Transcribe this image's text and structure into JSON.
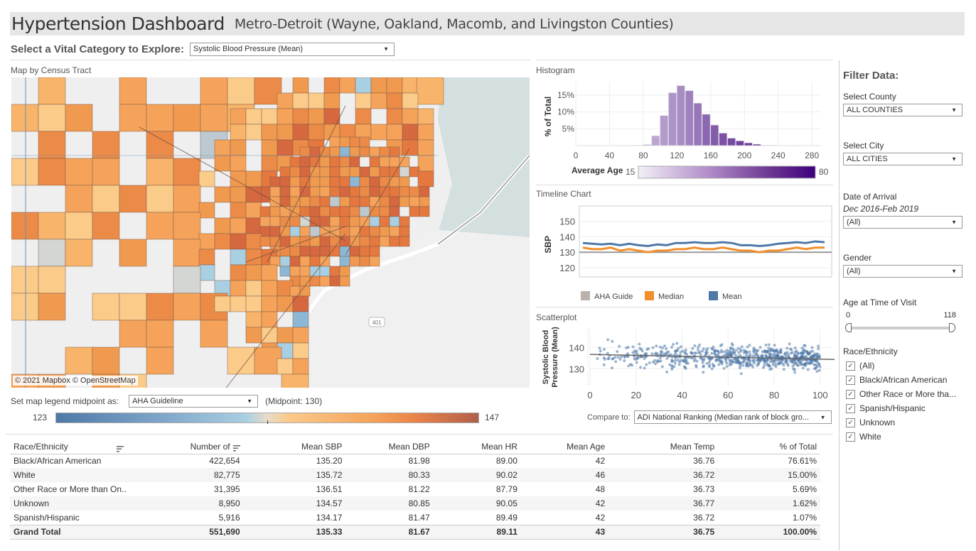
{
  "header": {
    "title": "Hypertension Dashboard",
    "subtitle": "Metro-Detroit (Wayne, Oakland, Macomb, and Livingston Counties)"
  },
  "vital": {
    "label": "Select a Vital Category to Explore:",
    "selected": "Systolic Blood Pressure (Mean)"
  },
  "map": {
    "title": "Map by Census Tract",
    "attribution": "© 2021 Mapbox  © OpenStreetMap",
    "highway_label": "401",
    "legend_label": "Set map legend midpoint as:",
    "legend_selected": "AHA Guideline",
    "midpoint_text": "(Midpoint: 130)",
    "legend_min": "123",
    "legend_max": "147",
    "colors": {
      "low": "#4e79a7",
      "mid": "#e8dccb",
      "high": "#b15f4a",
      "orange": "#f0a050",
      "water": "#d4dfe0",
      "land": "#efefef"
    }
  },
  "histogram": {
    "title": "Histogram",
    "color_legend_label": "Average Age",
    "color_min": "15",
    "color_max": "80"
  },
  "timeline": {
    "title": "Timeline Chart",
    "legend": [
      {
        "label": "AHA Guide",
        "color": "#bab0ac"
      },
      {
        "label": "Median",
        "color": "#f28e2b"
      },
      {
        "label": "Mean",
        "color": "#4e79a7"
      }
    ]
  },
  "scatter": {
    "title": "Scatterplot",
    "compare_label": "Compare to:",
    "compare_selected": "ADI National Ranking (Median rank of block gro..."
  },
  "chart_data": [
    {
      "type": "bar",
      "title": "Histogram",
      "xlabel": "",
      "ylabel": "% of Total",
      "x_ticks": [
        "0",
        "40",
        "80",
        "120",
        "160",
        "200",
        "240",
        "280"
      ],
      "y_ticks": [
        "5%",
        "10%",
        "15%"
      ],
      "xlim": [
        0,
        290
      ],
      "ylim": [
        0,
        19
      ],
      "bin_width": 10,
      "bins": [
        70,
        80,
        90,
        100,
        110,
        120,
        130,
        140,
        150,
        160,
        170,
        180,
        190,
        200,
        210,
        220,
        230
      ],
      "values": [
        0.1,
        0.3,
        2.9,
        8.9,
        15.7,
        17.8,
        16.3,
        12.6,
        9.3,
        6.1,
        3.7,
        2.2,
        1.4,
        0.8,
        0.4,
        0.1,
        0.1
      ],
      "avg_age": [
        20,
        30,
        35,
        38,
        40,
        42,
        45,
        48,
        52,
        55,
        58,
        60,
        62,
        64,
        66,
        60,
        55
      ],
      "grid": true
    },
    {
      "type": "line",
      "title": "Timeline Chart",
      "ylabel": "SBP",
      "y_ticks": [
        "120",
        "130",
        "140",
        "150"
      ],
      "ylim": [
        114,
        160
      ],
      "reference_line": {
        "name": "AHA Guide",
        "value": 130
      },
      "series": [
        {
          "name": "Mean",
          "values": [
            136,
            135.5,
            135,
            135.5,
            134.5,
            135.5,
            134.5,
            134,
            135,
            134.5,
            136,
            136,
            136.5,
            136,
            136,
            136.5,
            136,
            134.5,
            134.5,
            134,
            134.5,
            135.5,
            136,
            136.5,
            136,
            137,
            136.5
          ]
        },
        {
          "name": "Median",
          "values": [
            133,
            132,
            132,
            133,
            131,
            132,
            131,
            130,
            131,
            131,
            132,
            132,
            133,
            132,
            132,
            133,
            132,
            131,
            131,
            130,
            131,
            131,
            132,
            133,
            132,
            133,
            133
          ]
        }
      ],
      "legend": "bottom",
      "grid": true
    },
    {
      "type": "scatter",
      "title": "Scatterplot",
      "xlabel": "",
      "ylabel": "Systolic Blood Pressure (Mean)",
      "x_ticks": [
        "0",
        "20",
        "40",
        "60",
        "80",
        "100"
      ],
      "y_ticks": [
        "130",
        "140"
      ],
      "xlim": [
        0,
        105
      ],
      "ylim": [
        122,
        149
      ],
      "trend_line": {
        "x": [
          0,
          105
        ],
        "y": [
          136.8,
          134.4
        ]
      },
      "point_count_estimate": 700,
      "grid": true
    }
  ],
  "table": {
    "columns": [
      "Race/Ethnicity",
      "Number of",
      "Mean SBP",
      "Mean DBP",
      "Mean HR",
      "Mean Age",
      "Mean Temp",
      "% of Total"
    ],
    "rows": [
      [
        "Black/African American",
        "422,654",
        "135.20",
        "81.98",
        "89.00",
        "42",
        "36.76",
        "76.61%"
      ],
      [
        "White",
        "82,775",
        "135.72",
        "80.33",
        "90.02",
        "46",
        "36.72",
        "15.00%"
      ],
      [
        "Other Race or More than On..",
        "31,395",
        "136.51",
        "81.22",
        "87.79",
        "48",
        "36.73",
        "5.69%"
      ],
      [
        "Unknown",
        "8,950",
        "134.57",
        "80.85",
        "90.05",
        "42",
        "36.77",
        "1.62%"
      ],
      [
        "Spanish/Hispanic",
        "5,916",
        "134.17",
        "81.47",
        "89.49",
        "42",
        "36.72",
        "1.07%"
      ]
    ],
    "total": [
      "Grand Total",
      "551,690",
      "135.33",
      "81.67",
      "89.11",
      "43",
      "36.75",
      "100.00%"
    ]
  },
  "filters": {
    "heading": "Filter Data:",
    "county": {
      "label": "Select County",
      "value": "ALL COUNTIES"
    },
    "city": {
      "label": "Select City",
      "value": "ALL CITIES"
    },
    "date": {
      "label": "Date of Arrival",
      "range": "Dec 2016-Feb 2019",
      "value": "(All)"
    },
    "gender": {
      "label": "Gender",
      "value": "(All)"
    },
    "age": {
      "label": "Age at Time of Visit",
      "min": "0",
      "max": "118",
      "range_fraction": [
        0,
        1
      ]
    },
    "race": {
      "label": "Race/Ethnicity",
      "options": [
        {
          "label": "(All)",
          "checked": true
        },
        {
          "label": "Black/African American",
          "checked": true
        },
        {
          "label": "Other Race or More tha...",
          "checked": true
        },
        {
          "label": "Spanish/Hispanic",
          "checked": true
        },
        {
          "label": "Unknown",
          "checked": true
        },
        {
          "label": "White",
          "checked": true
        }
      ]
    }
  }
}
